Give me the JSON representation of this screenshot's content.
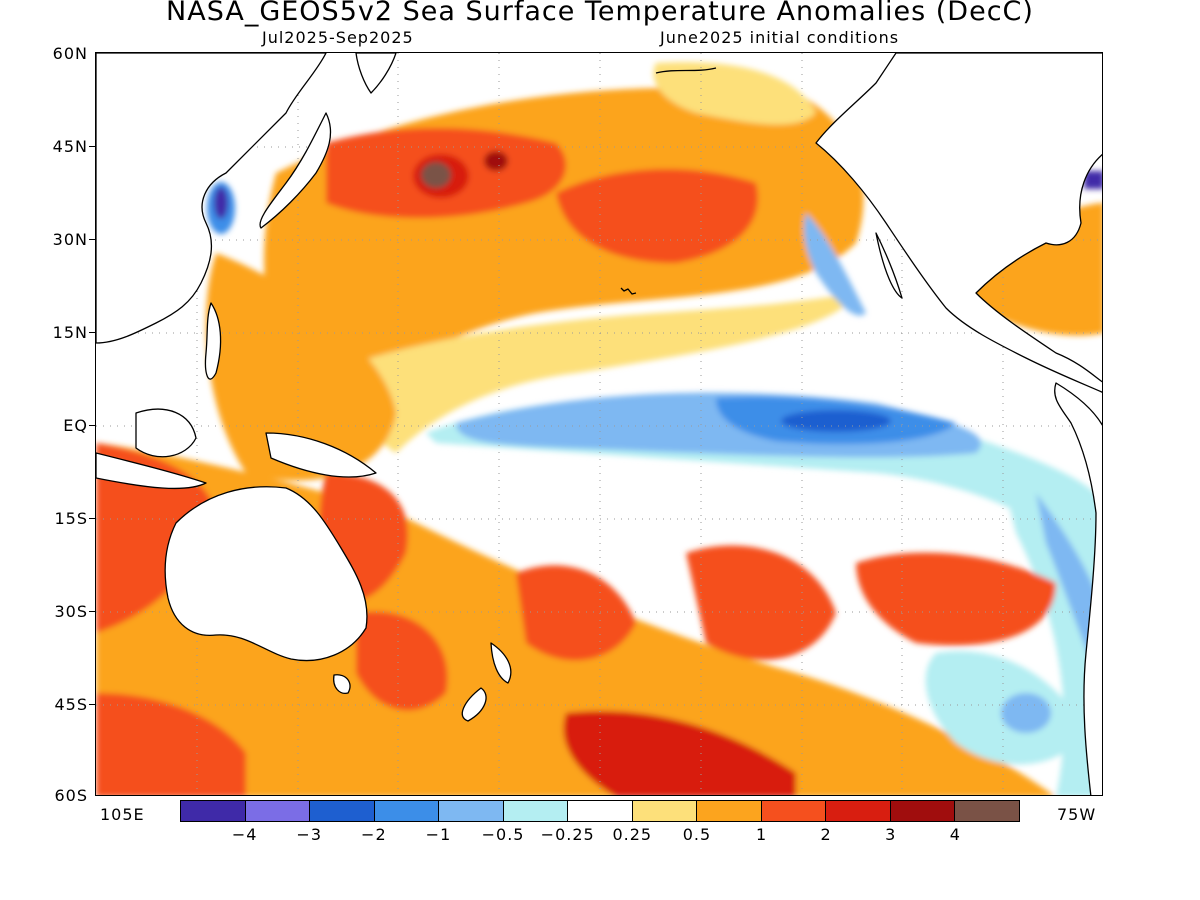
{
  "title": "NASA_GEOS5v2 Sea Surface Temperature Anomalies (DecC)",
  "subtitle_left": "Jul2025-Sep2025",
  "subtitle_right": "June2025 initial conditions",
  "map": {
    "lon_range_labels": [
      "105E",
      "75W"
    ],
    "lat_labels": [
      "60N",
      "45N",
      "30N",
      "15N",
      "EQ",
      "15S",
      "30S",
      "45S",
      "60S"
    ],
    "gridlines": "dotted"
  },
  "colorbar": {
    "colors": [
      "#3f2aa8",
      "#7b6de6",
      "#1e5fd0",
      "#3c8ee8",
      "#7eb8f2",
      "#b4eef2",
      "#ffffff",
      "#fde07a",
      "#fca41e",
      "#f5501e",
      "#d81e10",
      "#a00d0d",
      "#7a5246"
    ],
    "labels": [
      "-4",
      "-3",
      "-2",
      "-1",
      "-0.5",
      "-0.25",
      "0.25",
      "0.5",
      "1",
      "2",
      "3",
      "4"
    ]
  }
}
